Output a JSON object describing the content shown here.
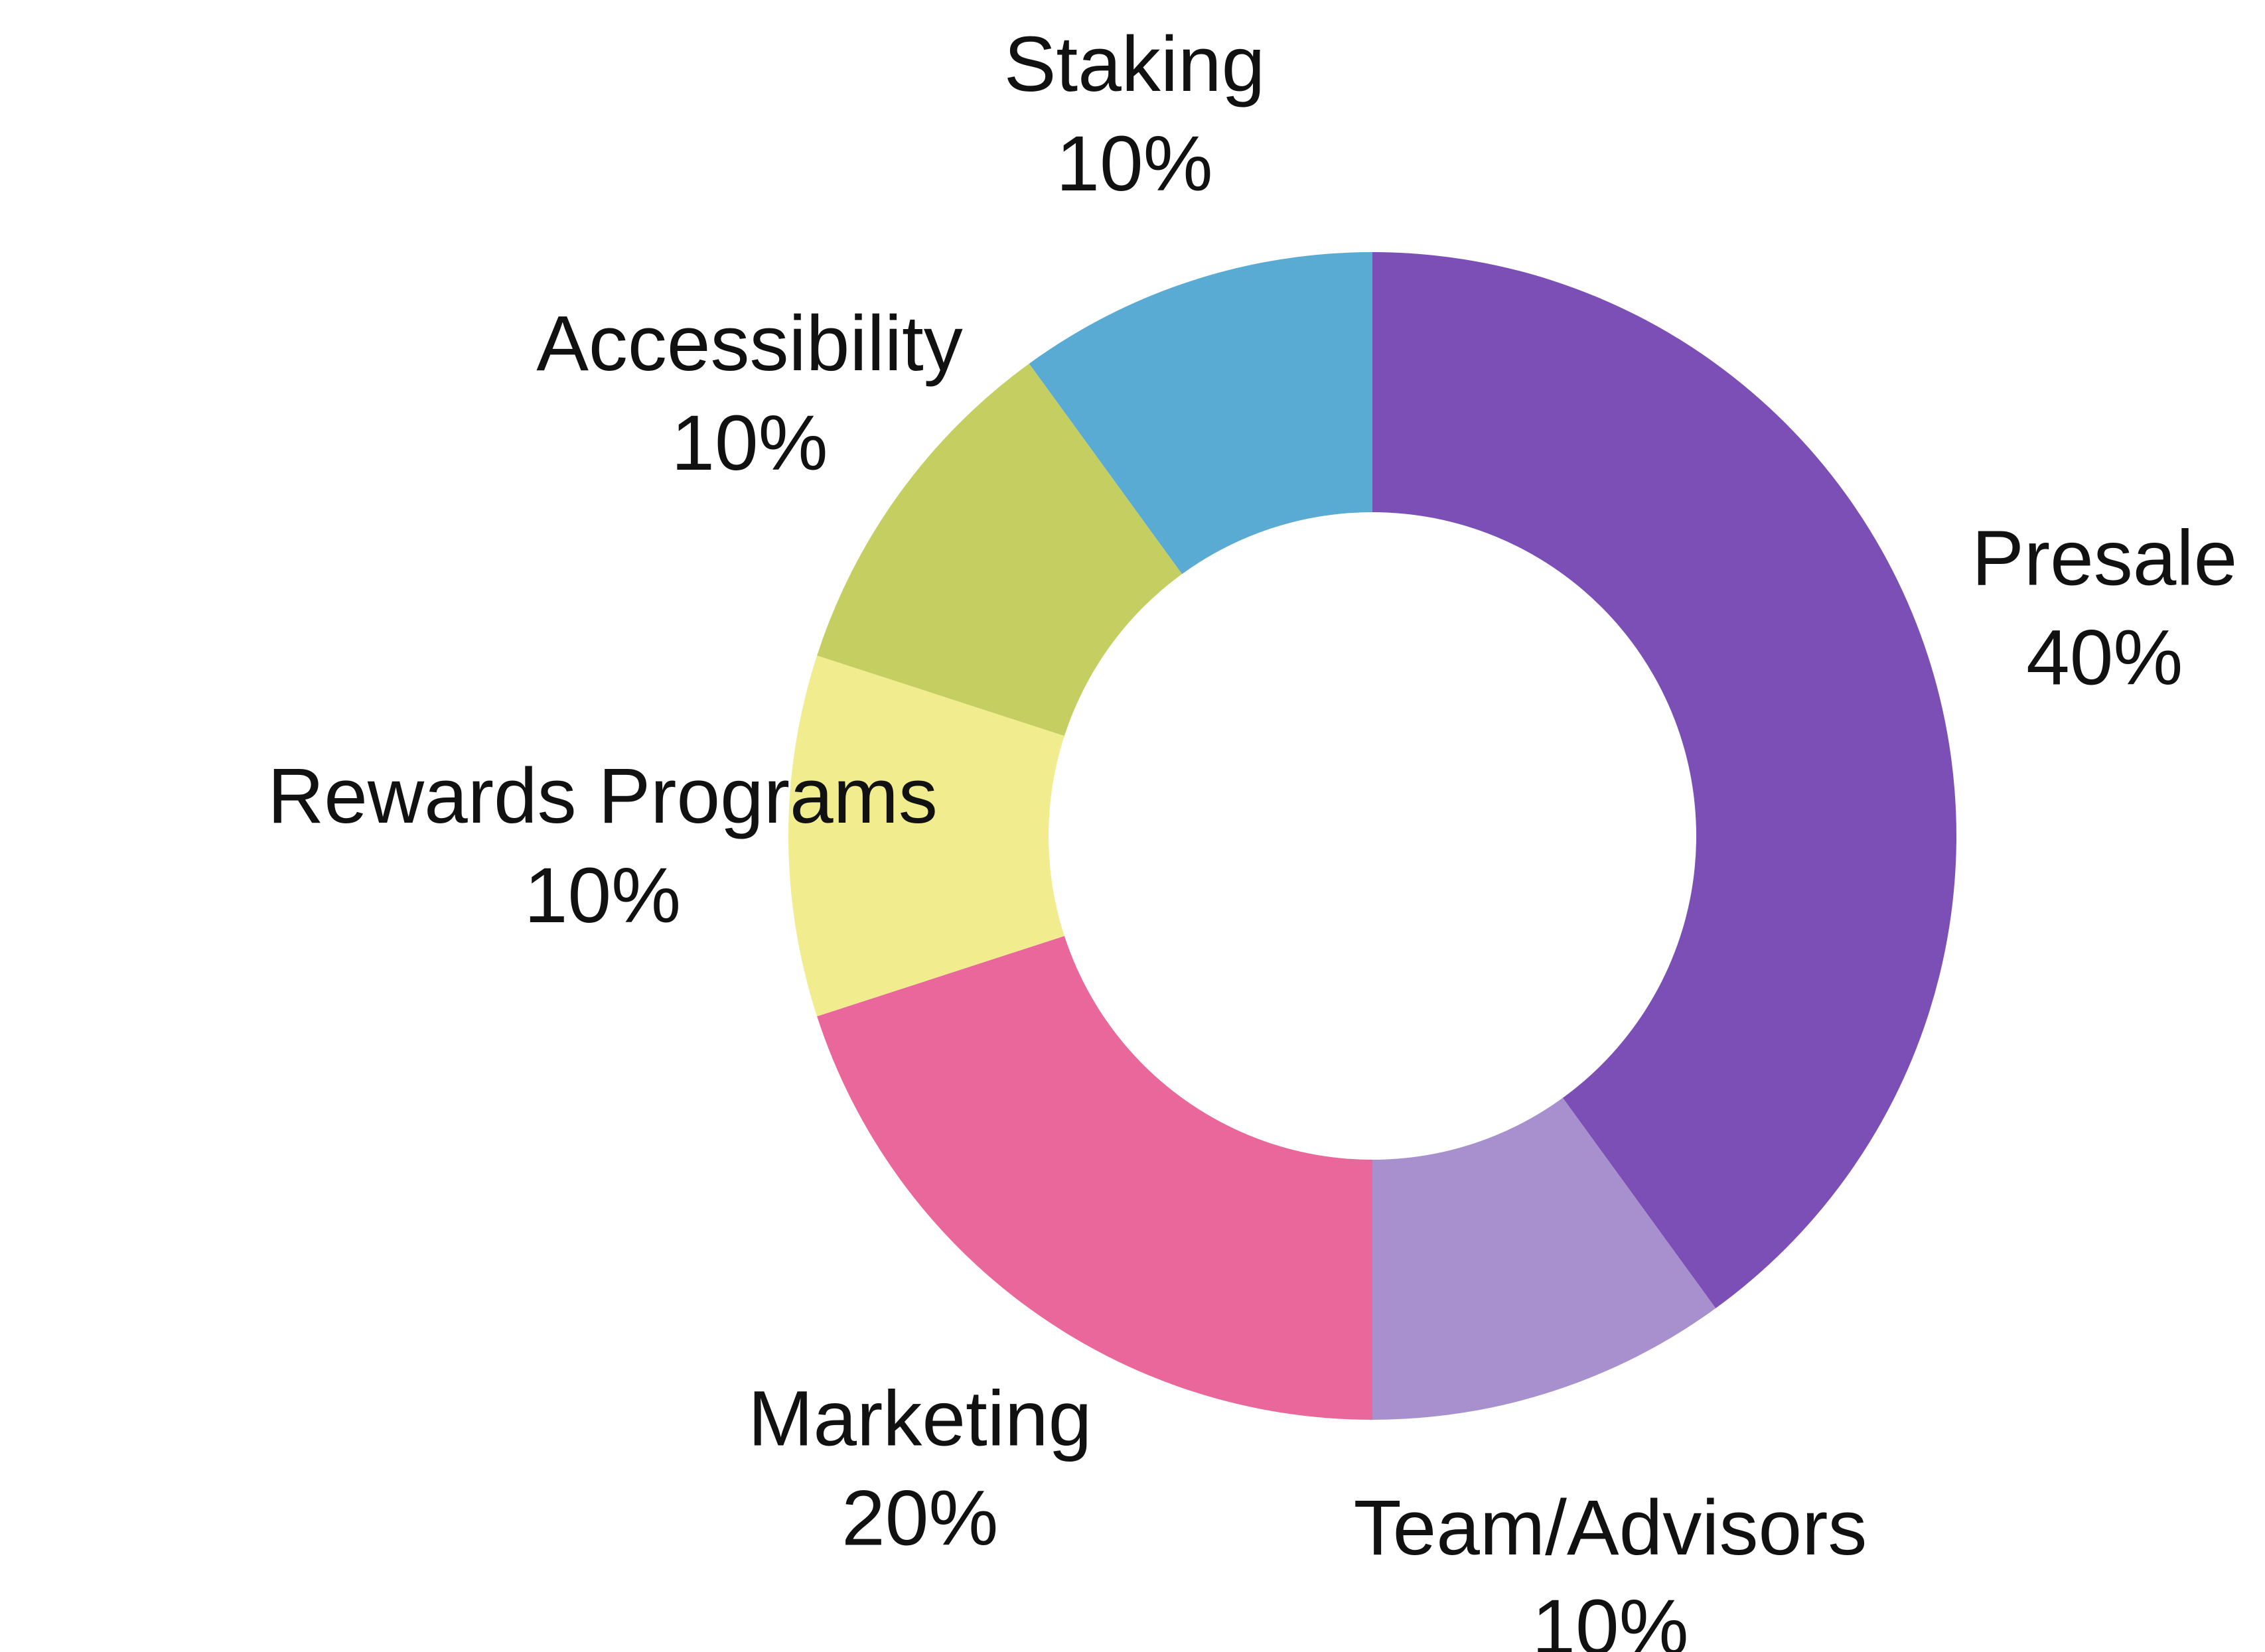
{
  "chart_data": {
    "type": "pie",
    "title": "",
    "subtitle": "",
    "donut": true,
    "start_at_top_clockwise": true,
    "legend": "none",
    "labels_outside": true,
    "slices": [
      {
        "label": "Presale",
        "value": 40,
        "value_label": "40%",
        "color": "#7B4FB5"
      },
      {
        "label": "Team/Advisors",
        "value": 10,
        "value_label": "10%",
        "color": "#A890CE"
      },
      {
        "label": "Marketing",
        "value": 20,
        "value_label": "20%",
        "color": "#EA679C"
      },
      {
        "label": "Rewards Programs",
        "value": 10,
        "value_label": "10%",
        "color": "#F1EC8E"
      },
      {
        "label": "Accessibility",
        "value": 10,
        "value_label": "10%",
        "color": "#C5CF61"
      },
      {
        "label": "Staking",
        "value": 10,
        "value_label": "10%",
        "color": "#5AABD4"
      }
    ]
  }
}
